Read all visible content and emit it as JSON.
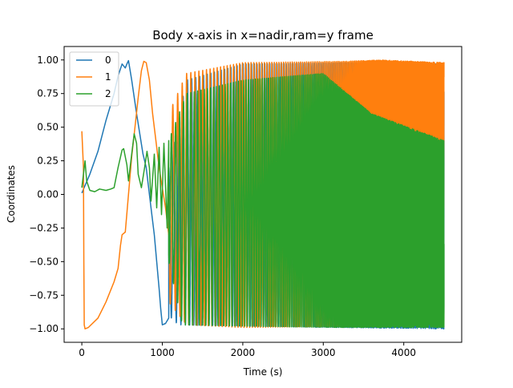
{
  "chart_data": {
    "type": "line",
    "title": "Body x-axis in x=nadir,ram=y frame",
    "xlabel": "Time (s)",
    "ylabel": "Coordinates",
    "xlim": [
      -220,
      4720
    ],
    "ylim": [
      -1.1,
      1.1
    ],
    "x_ticks": [
      0,
      1000,
      2000,
      3000,
      4000
    ],
    "x_tick_labels": [
      "0",
      "1000",
      "2000",
      "3000",
      "4000"
    ],
    "y_ticks": [
      1.0,
      0.75,
      0.5,
      0.25,
      0.0,
      -0.25,
      -0.5,
      -0.75,
      -1.0
    ],
    "y_tick_labels": [
      "1.00",
      "0.75",
      "0.50",
      "0.25",
      "0.00",
      "−0.25",
      "−0.50",
      "−0.75",
      "−1.00"
    ],
    "grid": false,
    "legend_position": "upper-left",
    "series": [
      {
        "name": "0",
        "color": "#1f77b4",
        "points": [
          [
            0,
            0.01
          ],
          [
            50,
            0.08
          ],
          [
            100,
            0.15
          ],
          [
            200,
            0.32
          ],
          [
            300,
            0.55
          ],
          [
            400,
            0.75
          ],
          [
            450,
            0.88
          ],
          [
            500,
            0.97
          ],
          [
            540,
            0.94
          ],
          [
            560,
            0.97
          ],
          [
            580,
            0.995
          ],
          [
            620,
            0.85
          ],
          [
            680,
            0.6
          ],
          [
            720,
            0.45
          ],
          [
            760,
            0.3
          ],
          [
            800,
            0.2
          ],
          [
            860,
            -0.1
          ],
          [
            900,
            -0.3
          ],
          [
            930,
            -0.5
          ],
          [
            960,
            -0.7
          ],
          [
            980,
            -0.85
          ],
          [
            1000,
            -0.97
          ],
          [
            1040,
            -0.96
          ],
          [
            1080,
            -0.92
          ]
        ],
        "oscillation": {
          "start": 1080,
          "end": 4500,
          "period_start": 70,
          "period_end": 5,
          "upper": [
            [
              1080,
              0.2
            ],
            [
              1300,
              0.85
            ],
            [
              2000,
              0.97
            ],
            [
              3200,
              0.98
            ],
            [
              4500,
              0.97
            ]
          ],
          "lower": [
            [
              1080,
              -0.9
            ],
            [
              1200,
              -0.97
            ],
            [
              2000,
              -0.98
            ],
            [
              4500,
              -1.0
            ]
          ]
        }
      },
      {
        "name": "1",
        "color": "#ff7f0e",
        "points": [
          [
            0,
            0.47
          ],
          [
            20,
            0.2
          ],
          [
            25,
            -0.5
          ],
          [
            30,
            -0.97
          ],
          [
            40,
            -1.0
          ],
          [
            80,
            -0.99
          ],
          [
            200,
            -0.92
          ],
          [
            300,
            -0.8
          ],
          [
            400,
            -0.65
          ],
          [
            450,
            -0.55
          ],
          [
            480,
            -0.38
          ],
          [
            500,
            -0.3
          ],
          [
            540,
            -0.28
          ],
          [
            580,
            0.0
          ],
          [
            620,
            0.28
          ],
          [
            660,
            0.5
          ],
          [
            700,
            0.72
          ],
          [
            740,
            0.92
          ],
          [
            770,
            0.99
          ],
          [
            800,
            0.98
          ],
          [
            840,
            0.85
          ],
          [
            880,
            0.6
          ],
          [
            920,
            0.4
          ],
          [
            960,
            0.2
          ],
          [
            1000,
            0.05
          ],
          [
            1040,
            -0.1
          ],
          [
            1080,
            -0.3
          ]
        ],
        "oscillation": {
          "start": 1080,
          "end": 4500,
          "period_start": 70,
          "period_end": 5,
          "upper": [
            [
              1080,
              0.6
            ],
            [
              1300,
              0.9
            ],
            [
              2000,
              0.98
            ],
            [
              3300,
              0.99
            ],
            [
              3700,
              1.0
            ],
            [
              4100,
              0.99
            ],
            [
              4500,
              0.98
            ]
          ],
          "lower": [
            [
              1080,
              -0.8
            ],
            [
              1300,
              -0.97
            ],
            [
              2000,
              -0.99
            ],
            [
              3300,
              -0.98
            ],
            [
              3500,
              -0.75
            ],
            [
              3800,
              -0.4
            ],
            [
              4100,
              -0.2
            ],
            [
              4500,
              -0.1
            ]
          ]
        }
      },
      {
        "name": "2",
        "color": "#2ca02c",
        "points": [
          [
            0,
            0.05
          ],
          [
            40,
            0.25
          ],
          [
            60,
            0.1
          ],
          [
            100,
            0.03
          ],
          [
            160,
            0.02
          ],
          [
            220,
            0.04
          ],
          [
            300,
            0.03
          ],
          [
            360,
            0.04
          ],
          [
            400,
            0.05
          ],
          [
            450,
            0.2
          ],
          [
            500,
            0.33
          ],
          [
            520,
            0.34
          ],
          [
            560,
            0.22
          ],
          [
            580,
            0.1
          ],
          [
            620,
            0.3
          ],
          [
            650,
            0.45
          ],
          [
            680,
            0.38
          ],
          [
            700,
            0.15
          ],
          [
            740,
            0.05
          ],
          [
            780,
            0.2
          ],
          [
            810,
            0.32
          ],
          [
            840,
            0.2
          ],
          [
            860,
            -0.05
          ],
          [
            900,
            0.3
          ],
          [
            930,
            -0.1
          ],
          [
            960,
            0.35
          ],
          [
            990,
            -0.15
          ],
          [
            1020,
            0.38
          ],
          [
            1060,
            -0.25
          ],
          [
            1080,
            0.4
          ]
        ],
        "oscillation": {
          "start": 1080,
          "end": 4500,
          "period_start": 60,
          "period_end": 4,
          "upper": [
            [
              1080,
              0.4
            ],
            [
              1300,
              0.75
            ],
            [
              2000,
              0.85
            ],
            [
              3000,
              0.9
            ],
            [
              3600,
              0.6
            ],
            [
              4500,
              0.4
            ]
          ],
          "lower": [
            [
              1080,
              -0.5
            ],
            [
              1250,
              -0.97
            ],
            [
              2000,
              -0.98
            ],
            [
              3200,
              -0.99
            ],
            [
              4500,
              -0.99
            ]
          ]
        }
      }
    ]
  }
}
